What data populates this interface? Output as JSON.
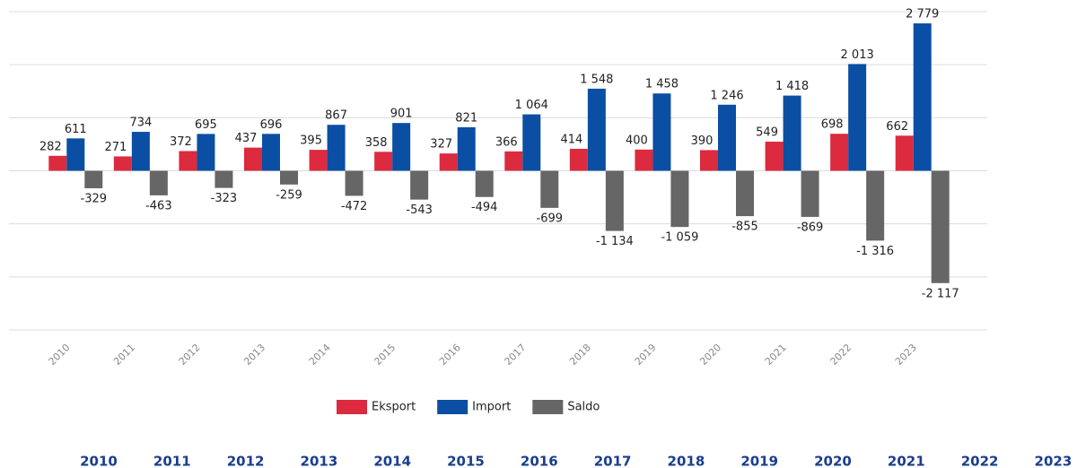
{
  "chart_data": {
    "type": "bar",
    "categories": [
      "2010",
      "2011",
      "2012",
      "2013",
      "2014",
      "2015",
      "2016",
      "2017",
      "2018",
      "2019",
      "2020",
      "2021",
      "2022",
      "2023"
    ],
    "series": [
      {
        "name": "Eksport",
        "color": "#dc2a3f",
        "values": [
          282,
          271,
          372,
          437,
          395,
          358,
          327,
          366,
          414,
          400,
          390,
          549,
          698,
          662
        ],
        "value_labels": [
          "282",
          "271",
          "372",
          "437",
          "395",
          "358",
          "327",
          "366",
          "414",
          "400",
          "390",
          "549",
          "698",
          "662"
        ]
      },
      {
        "name": "Import",
        "color": "#0a4fa3",
        "values": [
          611,
          734,
          695,
          696,
          867,
          901,
          821,
          1064,
          1548,
          1458,
          1246,
          1418,
          2013,
          2779
        ],
        "value_labels": [
          "611",
          "734",
          "695",
          "696",
          "867",
          "901",
          "821",
          "1 064",
          "1 548",
          "1 458",
          "1 246",
          "1 418",
          "2 013",
          "2 779"
        ]
      },
      {
        "name": "Saldo",
        "color": "#666666",
        "values": [
          -329,
          -463,
          -323,
          -259,
          -472,
          -543,
          -494,
          -699,
          -1134,
          -1059,
          -855,
          -869,
          -1316,
          -2117
        ],
        "value_labels": [
          "-329",
          "-463",
          "-323",
          "-259",
          "-472",
          "-543",
          "-494",
          "-699",
          "-1 134",
          "-1 059",
          "-855",
          "-869",
          "-1 316",
          "-2 117"
        ]
      }
    ],
    "ylim": [
      -3000,
      3000
    ],
    "yticks": [
      -3000,
      -2000,
      -1000,
      0,
      1000,
      2000,
      3000
    ],
    "grid": true
  },
  "year_buttons": [
    "2010",
    "2011",
    "2012",
    "2013",
    "2014",
    "2015",
    "2016",
    "2017",
    "2018",
    "2019",
    "2020",
    "2021",
    "2022",
    "2023"
  ]
}
